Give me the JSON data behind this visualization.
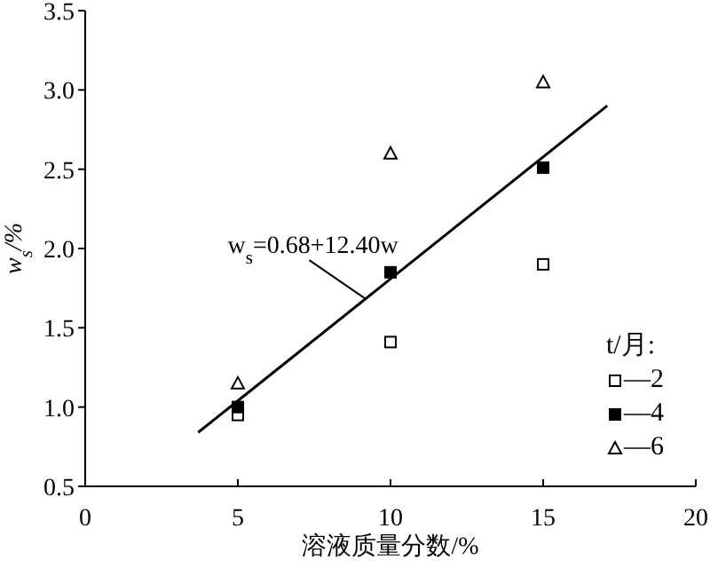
{
  "chart_data": {
    "type": "scatter",
    "xlabel": "溶液质量分数/%",
    "ylabel": "w$_{s}$/%",
    "legend_title": "t/月:",
    "legend": "bottom right",
    "xlim": [
      0,
      20
    ],
    "xticks": [
      0,
      5,
      10,
      15,
      20
    ],
    "ylim": [
      0.5,
      3.5
    ],
    "yticks": [
      {
        "value": 0.5,
        "label": "0.5"
      },
      {
        "value": 1,
        "label": "1.0"
      },
      {
        "value": 1.5,
        "label": "1.5"
      },
      {
        "value": 2,
        "label": "2.0"
      },
      {
        "value": 2.5,
        "label": "2.5"
      },
      {
        "value": 3,
        "label": "3.0"
      },
      {
        "value": 3.5,
        "label": "3.5"
      }
    ],
    "x": [
      5,
      10,
      15
    ],
    "series": [
      {
        "name": "—2",
        "color": "#000000",
        "marker": "square-open",
        "values": [
          0.95,
          1.41,
          1.9
        ]
      },
      {
        "name": "—4",
        "color": "#000000",
        "marker": "square",
        "values": [
          1.0,
          1.85,
          2.51
        ]
      },
      {
        "name": "—6",
        "color": "#000000",
        "marker": "triangle-open",
        "values": [
          1.15,
          2.6,
          3.05
        ]
      },
      {
        "type": "line",
        "color": "#000000",
        "x": [
          3.7,
          17.1
        ],
        "values": [
          0.84,
          2.9
        ]
      }
    ],
    "annotations": [
      {
        "text": "w$_{s}$=0.68+12.40w",
        "x": 9.2,
        "y": 1.68
      }
    ]
  }
}
